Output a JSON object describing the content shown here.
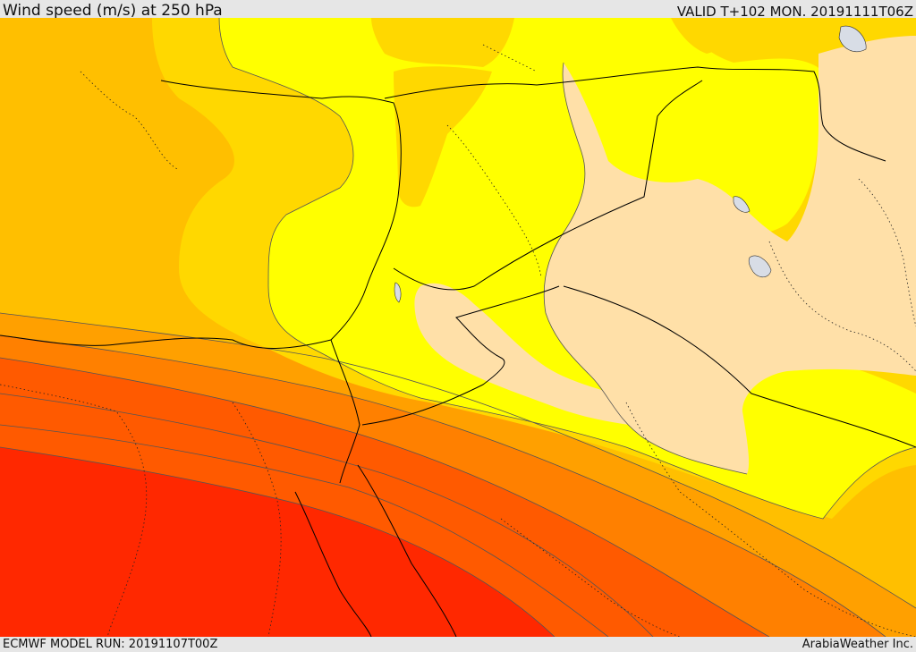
{
  "header": {
    "title": "Wind speed (m/s) at 250 hPa",
    "valid": "VALID T+102 MON. 20191111T06Z"
  },
  "footer": {
    "model_run": "ECMWF MODEL RUN: 20191107T00Z",
    "credit": "ArabiaWeather Inc."
  },
  "map": {
    "colors": {
      "pale": "#ffe0a8",
      "yellow": "#ffff00",
      "gold": "#ffd800",
      "amber": "#ffbf00",
      "orange1": "#ffa000",
      "orange2": "#ff8000",
      "orange3": "#ff5a00",
      "red": "#ff2800",
      "lake": "#d8dde6"
    }
  }
}
